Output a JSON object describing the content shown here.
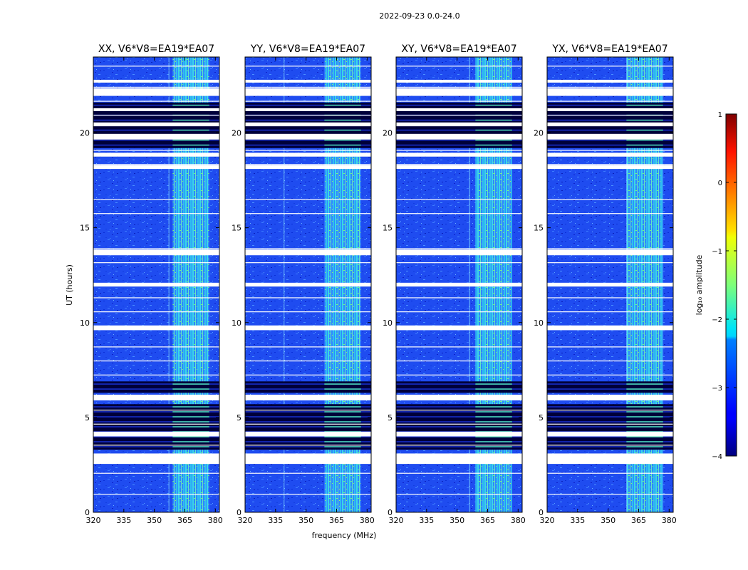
{
  "figure": {
    "suptitle": "2022-09-23 0.0-24.0",
    "xlabel": "frequency (MHz)",
    "ylabel": "UT (hours)"
  },
  "chart_data": {
    "type": "heatmap",
    "title": "2022-09-23 0.0-24.0",
    "xlabel": "frequency (MHz)",
    "ylabel": "UT (hours)",
    "xlim": [
      320,
      382
    ],
    "ylim": [
      0,
      24
    ],
    "x_ticks": [
      320,
      335,
      350,
      365,
      380
    ],
    "y_ticks": [
      0,
      5,
      10,
      15,
      20
    ],
    "panels": [
      {
        "title": "XX, V6*V8=EA19*EA07",
        "rfi_line_mhz": 357
      },
      {
        "title": "YY, V6*V8=EA19*EA07",
        "rfi_line_mhz": 339
      },
      {
        "title": "XY, V6*V8=EA19*EA07",
        "rfi_line_mhz": 356
      },
      {
        "title": "YX, V6*V8=EA19*EA07",
        "rfi_line_mhz": 359
      }
    ],
    "bright_band_mhz": [
      359,
      377
    ],
    "dark_segments_hours": [
      [
        3.3,
        5.7
      ],
      [
        6.3,
        6.9
      ],
      [
        19.2,
        21.6
      ]
    ],
    "flagged_gaps_hours": [
      [
        2.55,
        3.1
      ],
      [
        4.0,
        4.25
      ],
      [
        5.9,
        6.2
      ],
      [
        9.6,
        9.85
      ],
      [
        11.9,
        12.1
      ],
      [
        13.55,
        13.85
      ],
      [
        18.1,
        18.3
      ],
      [
        18.75,
        18.95
      ],
      [
        19.65,
        19.95
      ],
      [
        20.35,
        20.55
      ],
      [
        21.15,
        21.3
      ],
      [
        21.95,
        22.35
      ],
      [
        22.65,
        22.8
      ]
    ],
    "colorbar": {
      "label": "log₁₀ amplitude",
      "min": -4,
      "max": 1,
      "ticks": [
        1,
        0,
        -1,
        -2,
        -3,
        -4
      ],
      "tick_labels": [
        "1",
        "0",
        "−1",
        "−2",
        "−3",
        "−4"
      ],
      "colormap": "jet"
    }
  }
}
